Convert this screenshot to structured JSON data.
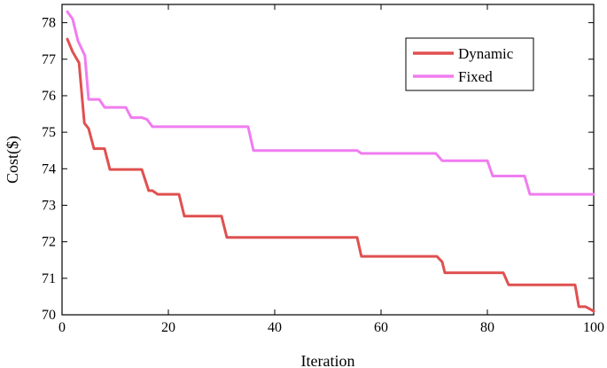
{
  "chart_data": {
    "type": "line",
    "title": "",
    "xlabel": "Iteration",
    "ylabel": "Cost($)",
    "xlim": [
      0,
      100
    ],
    "ylim": [
      70,
      78.5
    ],
    "x_ticks": [
      0,
      20,
      40,
      60,
      80,
      100
    ],
    "y_ticks": [
      70,
      71,
      72,
      73,
      74,
      75,
      76,
      77,
      78
    ],
    "x_tick_labels": [
      "0",
      "20",
      "40",
      "60",
      "80",
      "100"
    ],
    "y_tick_labels": [
      "70",
      "71",
      "72",
      "73",
      "74",
      "75",
      "76",
      "77",
      "78"
    ],
    "grid": false,
    "legend_position": "top-right",
    "series": [
      {
        "name": "Dynamic",
        "color": "#e05050",
        "points": [
          [
            1,
            77.55
          ],
          [
            2,
            77.2
          ],
          [
            3.2,
            76.9
          ],
          [
            4.2,
            75.25
          ],
          [
            5,
            75.1
          ],
          [
            6,
            74.55
          ],
          [
            8,
            74.55
          ],
          [
            9,
            73.98
          ],
          [
            15,
            73.98
          ],
          [
            16.3,
            73.4
          ],
          [
            17,
            73.4
          ],
          [
            18,
            73.3
          ],
          [
            22,
            73.3
          ],
          [
            23,
            72.7
          ],
          [
            30,
            72.7
          ],
          [
            31,
            72.12
          ],
          [
            55.5,
            72.12
          ],
          [
            56.3,
            71.6
          ],
          [
            70.5,
            71.6
          ],
          [
            71.5,
            71.45
          ],
          [
            72,
            71.15
          ],
          [
            83,
            71.15
          ],
          [
            84,
            70.82
          ],
          [
            96.5,
            70.82
          ],
          [
            97.2,
            70.22
          ],
          [
            98.5,
            70.22
          ],
          [
            100,
            70.1
          ]
        ]
      },
      {
        "name": "Fixed",
        "color": "#f07cf0",
        "points": [
          [
            1,
            78.3
          ],
          [
            2,
            78.1
          ],
          [
            3,
            77.5
          ],
          [
            4.3,
            77.1
          ],
          [
            5,
            75.9
          ],
          [
            7,
            75.9
          ],
          [
            8,
            75.68
          ],
          [
            12,
            75.68
          ],
          [
            13,
            75.4
          ],
          [
            15,
            75.4
          ],
          [
            16,
            75.35
          ],
          [
            17,
            75.15
          ],
          [
            35,
            75.15
          ],
          [
            36,
            74.5
          ],
          [
            55.5,
            74.5
          ],
          [
            56.3,
            74.42
          ],
          [
            70.3,
            74.42
          ],
          [
            71.5,
            74.22
          ],
          [
            80,
            74.22
          ],
          [
            81,
            73.8
          ],
          [
            87,
            73.8
          ],
          [
            88,
            73.3
          ],
          [
            100,
            73.3
          ]
        ]
      }
    ]
  }
}
